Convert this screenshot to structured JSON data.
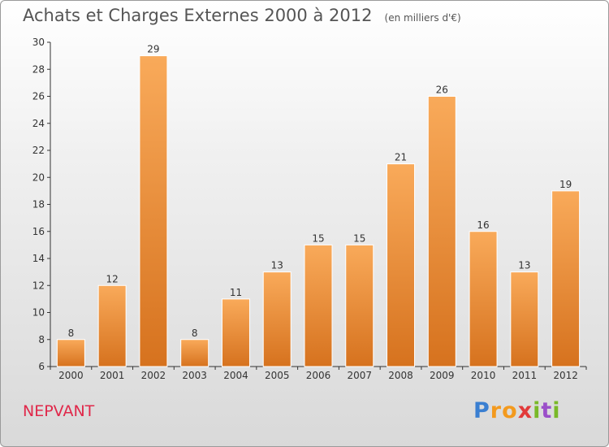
{
  "title": "Achats et Charges Externes 2000 à 2012",
  "subtitle": "(en milliers d'€)",
  "commune": "NEPVANT",
  "logo": {
    "letters": [
      "P",
      "r",
      "o",
      "x",
      "i",
      "t",
      "i"
    ],
    "colors": [
      "#3a7fd1",
      "#f39a1e",
      "#f39a1e",
      "#e23a3a",
      "#79b928",
      "#9b4fc9",
      "#79b928"
    ]
  },
  "colors": {
    "bar_light": "#f9aa5a",
    "bar_dark": "#d6721e",
    "axis": "#333333",
    "grid": "#cfcfcf"
  },
  "chart_data": {
    "type": "bar",
    "categories": [
      "2000",
      "2001",
      "2002",
      "2003",
      "2004",
      "2005",
      "2006",
      "2007",
      "2008",
      "2009",
      "2010",
      "2011",
      "2012"
    ],
    "values": [
      8,
      12,
      29,
      8,
      11,
      13,
      15,
      15,
      21,
      26,
      16,
      13,
      19
    ],
    "ylim": [
      6,
      30
    ],
    "yticks": [
      6,
      8,
      10,
      12,
      14,
      16,
      18,
      20,
      22,
      24,
      26,
      28,
      30
    ],
    "grid": false
  }
}
